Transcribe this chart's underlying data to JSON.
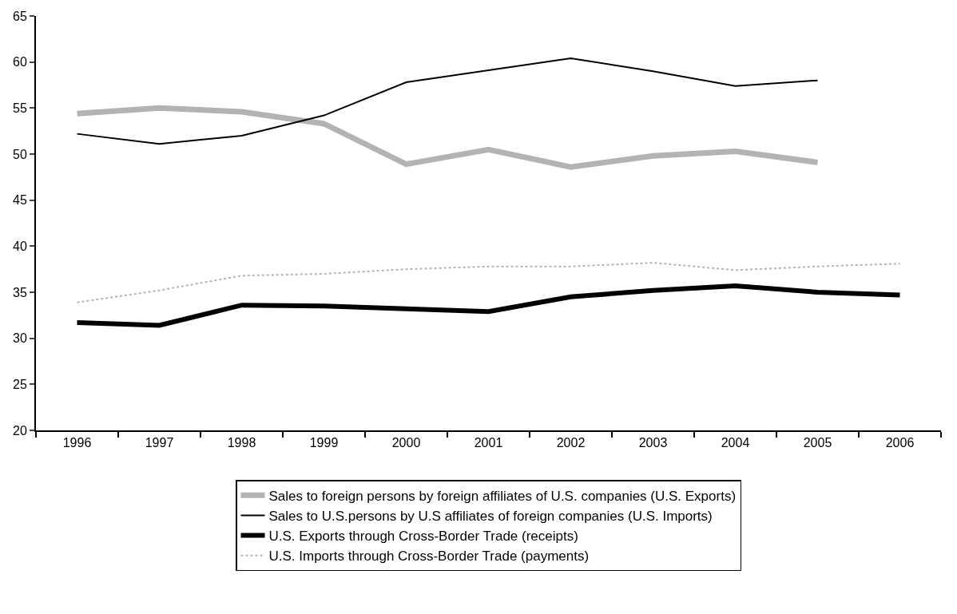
{
  "chart_data": {
    "type": "line",
    "categories": [
      "1996",
      "1997",
      "1998",
      "1999",
      "2000",
      "2001",
      "2002",
      "2003",
      "2004",
      "2005",
      "2006"
    ],
    "series": [
      {
        "name": "Sales to foreign persons by foreign affiliates of U.S. companies (U.S. Exports)",
        "color": "#b3b3b3",
        "line_style": "solid",
        "values": [
          54.4,
          55.0,
          54.6,
          53.3,
          48.9,
          50.5,
          48.6,
          49.8,
          50.3,
          49.1,
          null
        ]
      },
      {
        "name": "Sales to U.S.persons by U.S affiliates of foreign companies (U.S. Imports)",
        "color": "#000000",
        "line_style": "solid",
        "values": [
          52.2,
          51.1,
          52.0,
          54.2,
          57.8,
          59.1,
          60.4,
          59.0,
          57.4,
          58.0,
          null
        ]
      },
      {
        "name": "U.S. Exports through Cross-Border Trade (receipts)",
        "color": "#000000",
        "line_style": "solid",
        "values": [
          31.7,
          31.4,
          33.6,
          33.5,
          33.2,
          32.9,
          34.5,
          35.2,
          35.7,
          35.0,
          34.7
        ]
      },
      {
        "name": "U.S. Imports through Cross-Border Trade (payments)",
        "color": "#b3b3b3",
        "line_style": "dotted",
        "values": [
          33.9,
          35.2,
          36.8,
          37.0,
          37.5,
          37.8,
          37.8,
          38.2,
          37.4,
          37.8,
          38.1
        ]
      }
    ],
    "ylim": [
      20,
      65
    ],
    "yticks": [
      20,
      25,
      30,
      35,
      40,
      45,
      50,
      55,
      60,
      65
    ],
    "legend": "bottom",
    "marker": "none"
  }
}
